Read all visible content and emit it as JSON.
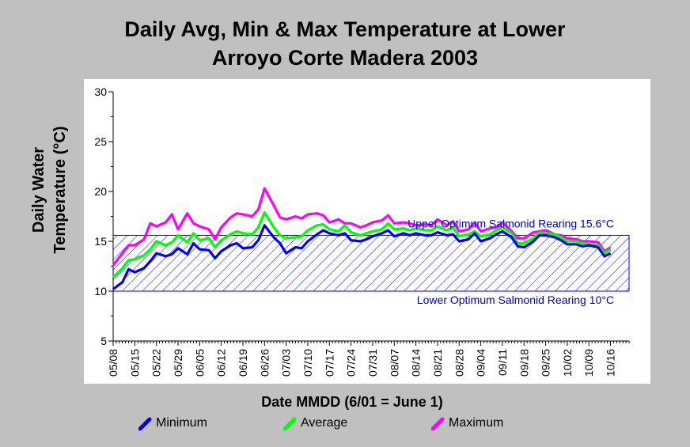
{
  "title_line1": "Daily Avg, Min & Max Temperature at Lower",
  "title_line2": "Arroyo Corte Madera 2003",
  "chart_data": {
    "type": "line",
    "title": "Daily Avg, Min & Max Temperature at Lower Arroyo Corte Madera 2003",
    "xlabel": "Date MMDD (6/01 = June 1)",
    "ylabel_lines": [
      "Daily Water",
      "Temperature (°C)"
    ],
    "ylim": [
      5,
      30
    ],
    "yticks": [
      "5",
      "10",
      "15",
      "20",
      "25",
      "30"
    ],
    "xlim": [
      "05/08",
      "10/22"
    ],
    "xticks": [
      "05/08",
      "05/15",
      "05/22",
      "05/29",
      "06/05",
      "06/12",
      "06/19",
      "06/26",
      "07/03",
      "07/10",
      "07/17",
      "07/24",
      "07/31",
      "08/07",
      "08/14",
      "08/21",
      "08/28",
      "09/04",
      "09/11",
      "09/18",
      "09/25",
      "10/02",
      "10/09",
      "10/16"
    ],
    "grid": false,
    "legend_position": "bottom",
    "band": {
      "y_low": 10,
      "y_high": 15.6,
      "upper_label": "Upper Optimum Salmonid Rearing 15.6°C",
      "lower_label": "Lower Optimum Salmonid Rearing 10°C",
      "color": "#0000ff"
    },
    "x_dates": [
      "05/08",
      "05/11",
      "05/13",
      "05/15",
      "05/18",
      "05/20",
      "05/22",
      "05/25",
      "05/27",
      "05/29",
      "06/01",
      "06/03",
      "06/05",
      "06/08",
      "06/10",
      "06/12",
      "06/15",
      "06/17",
      "06/19",
      "06/22",
      "06/24",
      "06/26",
      "06/29",
      "07/01",
      "07/03",
      "07/06",
      "07/08",
      "07/10",
      "07/13",
      "07/15",
      "07/17",
      "07/20",
      "07/22",
      "07/24",
      "07/27",
      "07/29",
      "07/31",
      "08/03",
      "08/05",
      "08/07",
      "08/10",
      "08/12",
      "08/14",
      "08/17",
      "08/19",
      "08/21",
      "08/24",
      "08/26",
      "08/28",
      "08/31",
      "09/02",
      "09/04",
      "09/07",
      "09/09",
      "09/11",
      "09/14",
      "09/16",
      "09/18",
      "09/21",
      "09/23",
      "09/25",
      "09/28",
      "09/30",
      "10/02",
      "10/05",
      "10/07",
      "10/09",
      "10/12",
      "10/14",
      "10/16"
    ],
    "series": [
      {
        "name": "Minimum",
        "color": "#0000ff",
        "values": [
          10.2,
          10.9,
          12.2,
          11.9,
          12.3,
          13.0,
          13.8,
          13.5,
          13.7,
          14.3,
          13.7,
          14.8,
          14.2,
          14.1,
          13.3,
          14.0,
          14.6,
          14.8,
          14.3,
          14.4,
          15.1,
          16.6,
          15.4,
          14.8,
          13.8,
          14.4,
          14.3,
          15.0,
          15.7,
          16.1,
          15.8,
          15.6,
          15.8,
          15.1,
          15.0,
          15.2,
          15.5,
          15.8,
          16.1,
          15.5,
          15.8,
          15.6,
          15.8,
          15.6,
          15.6,
          15.9,
          15.6,
          15.7,
          15.0,
          15.2,
          15.8,
          15.0,
          15.3,
          15.7,
          16.0,
          15.4,
          14.5,
          14.4,
          15.0,
          15.6,
          15.6,
          15.4,
          15.1,
          14.7,
          14.7,
          14.5,
          14.6,
          14.4,
          13.5,
          13.8
        ]
      },
      {
        "name": "Average",
        "color": "#00ff00",
        "values": [
          11.4,
          12.3,
          13.1,
          13.2,
          13.6,
          14.2,
          15.0,
          14.6,
          14.9,
          15.6,
          14.9,
          15.8,
          15.1,
          15.3,
          14.4,
          15.1,
          15.7,
          16.0,
          15.8,
          15.7,
          16.4,
          17.9,
          16.4,
          15.6,
          15.3,
          15.4,
          15.5,
          16.1,
          16.6,
          16.7,
          16.2,
          16.0,
          16.6,
          15.9,
          15.6,
          15.8,
          16.0,
          16.2,
          16.8,
          16.2,
          16.3,
          16.1,
          16.3,
          16.1,
          16.1,
          16.5,
          16.1,
          16.4,
          15.5,
          15.7,
          16.0,
          15.5,
          15.7,
          16.1,
          16.4,
          15.8,
          14.8,
          14.8,
          15.3,
          15.9,
          15.8,
          15.7,
          15.4,
          15.0,
          15.0,
          14.8,
          14.7,
          14.6,
          13.8,
          14.2
        ]
      },
      {
        "name": "Maximum",
        "color": "#ff00ff",
        "values": [
          12.6,
          13.8,
          14.6,
          14.6,
          15.2,
          16.8,
          16.5,
          16.9,
          17.7,
          16.2,
          17.8,
          16.8,
          16.5,
          16.2,
          15.2,
          16.4,
          17.4,
          17.8,
          17.7,
          17.5,
          18.2,
          20.3,
          18.6,
          17.4,
          17.2,
          17.5,
          17.3,
          17.7,
          17.8,
          17.6,
          16.9,
          17.2,
          16.8,
          16.8,
          16.4,
          16.6,
          16.9,
          17.1,
          17.6,
          16.8,
          16.9,
          16.8,
          16.6,
          16.7,
          16.6,
          17.2,
          16.6,
          17.0,
          16.0,
          16.2,
          16.9,
          16.0,
          16.3,
          16.4,
          16.9,
          16.0,
          15.3,
          15.3,
          15.9,
          16.0,
          16.1,
          15.7,
          15.6,
          15.3,
          15.2,
          15.0,
          15.0,
          14.9,
          14.0,
          14.4
        ]
      }
    ]
  },
  "legend": {
    "items": [
      {
        "label": "Minimum",
        "color": "#0000ff"
      },
      {
        "label": "Average",
        "color": "#00ff00"
      },
      {
        "label": "Maximum",
        "color": "#ff00ff"
      }
    ]
  }
}
